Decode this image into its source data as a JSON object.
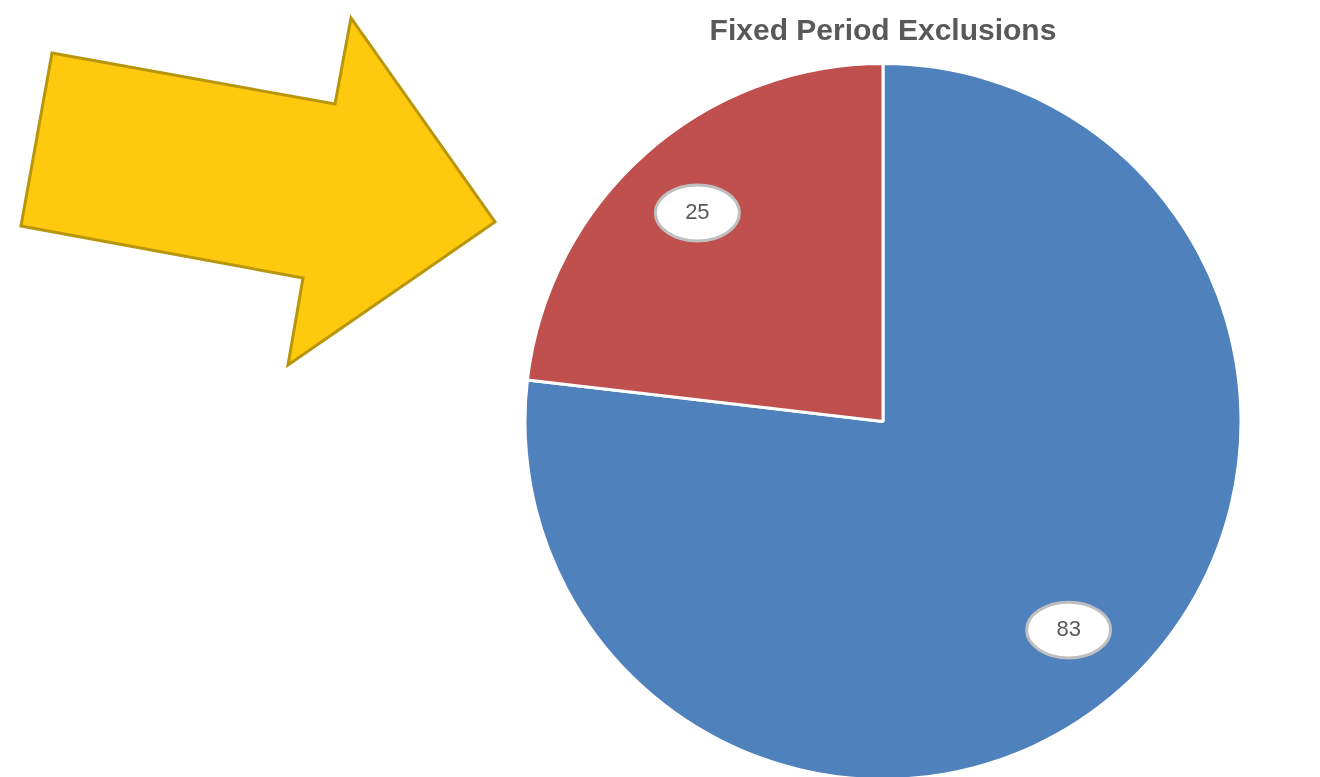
{
  "chart_data": {
    "type": "pie",
    "title": "Fixed Period Exclusions",
    "categories": [
      null,
      null
    ],
    "values": [
      83,
      25
    ],
    "colors": [
      "#4f81bd",
      "#c0504d"
    ],
    "data_labels": true
  }
}
